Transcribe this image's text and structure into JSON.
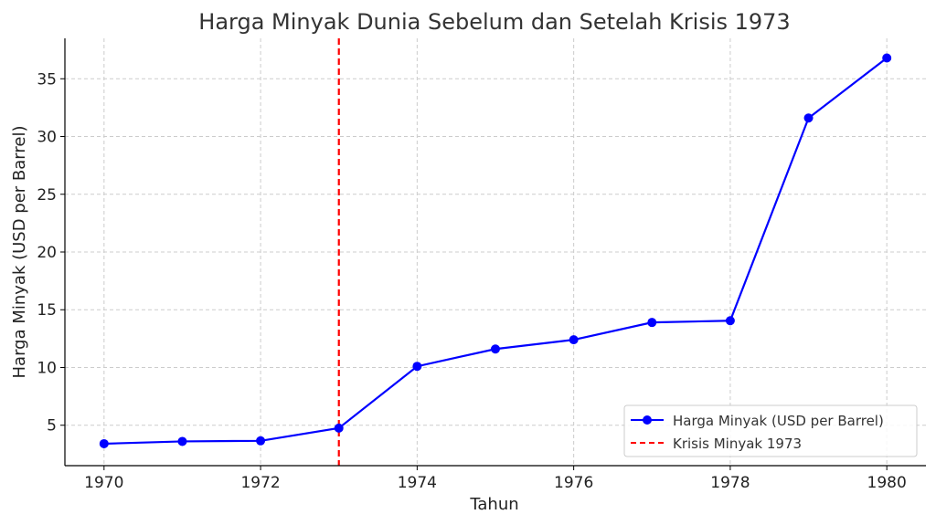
{
  "chart_data": {
    "type": "line",
    "title": "Harga Minyak Dunia Sebelum dan Setelah Krisis 1973",
    "xlabel": "Tahun",
    "ylabel": "Harga Minyak (USD per Barrel)",
    "x": [
      1970,
      1971,
      1972,
      1973,
      1974,
      1975,
      1976,
      1977,
      1978,
      1979,
      1980
    ],
    "xlim": [
      1969.5,
      1980.5
    ],
    "ylim": [
      1.5,
      38.5
    ],
    "xticks": [
      1970,
      1972,
      1974,
      1976,
      1978,
      1980
    ],
    "yticks": [
      5,
      10,
      15,
      20,
      25,
      30,
      35
    ],
    "grid": true,
    "legend_position": "bottom-right",
    "series": [
      {
        "name": "Harga Minyak (USD per Barrel)",
        "color": "#0000ff",
        "marker": "circle",
        "values": [
          3.4,
          3.6,
          3.65,
          4.75,
          10.1,
          11.6,
          12.4,
          13.9,
          14.05,
          31.6,
          36.8
        ]
      }
    ],
    "annotations": [
      {
        "type": "vline",
        "name": "Krisis Minyak 1973",
        "x": 1973,
        "color": "#ff0000",
        "style": "dashed"
      }
    ]
  }
}
